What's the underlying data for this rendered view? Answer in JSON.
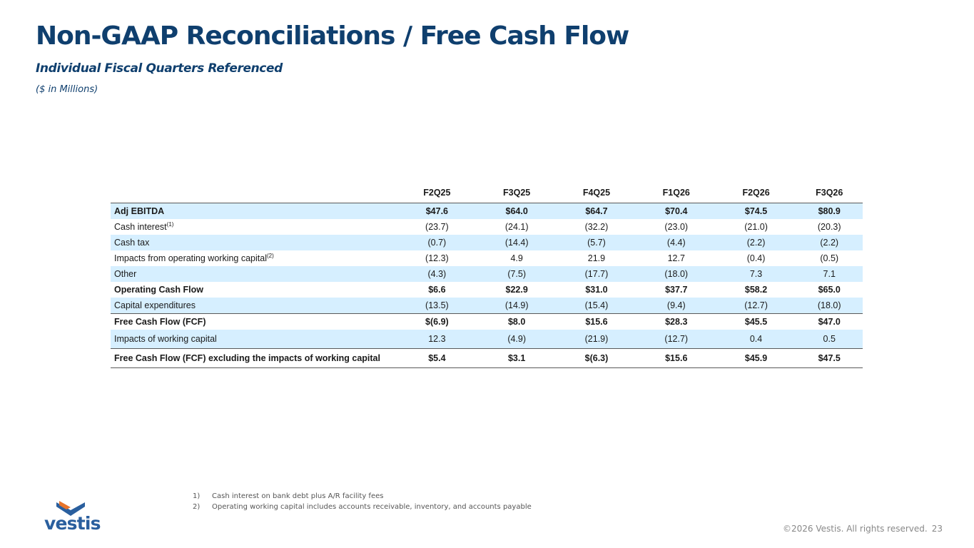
{
  "header": {
    "title": "Non-GAAP Reconciliations / Free Cash Flow",
    "subtitle": "Individual Fiscal Quarters Referenced",
    "units": "($ in Millions)"
  },
  "table": {
    "columns": [
      "F2Q25",
      "F3Q25",
      "F4Q25",
      "F1Q26",
      "F2Q26",
      "F3Q26"
    ],
    "rows": [
      {
        "label": "Adj EBITDA",
        "sup": "",
        "values": [
          "$47.6",
          "$64.0",
          "$64.7",
          "$70.4",
          "$74.5",
          "$80.9"
        ]
      },
      {
        "label": "Cash interest",
        "sup": "(1)",
        "values": [
          "(23.7)",
          "(24.1)",
          "(32.2)",
          "(23.0)",
          "(21.0)",
          "(20.3)"
        ]
      },
      {
        "label": "Cash tax",
        "sup": "",
        "values": [
          "(0.7)",
          "(14.4)",
          "(5.7)",
          "(4.4)",
          "(2.2)",
          "(2.2)"
        ]
      },
      {
        "label": "Impacts from operating working capital",
        "sup": "(2)",
        "values": [
          "(12.3)",
          "4.9",
          "21.9",
          "12.7",
          "(0.4)",
          "(0.5)"
        ]
      },
      {
        "label": "Other",
        "sup": "",
        "values": [
          "(4.3)",
          "(7.5)",
          "(17.7)",
          "(18.0)",
          "7.3",
          "7.1"
        ]
      },
      {
        "label": "Operating Cash Flow",
        "sup": "",
        "values": [
          "$6.6",
          "$22.9",
          "$31.0",
          "$37.7",
          "$58.2",
          "$65.0"
        ]
      },
      {
        "label": "Capital expenditures",
        "sup": "",
        "values": [
          "(13.5)",
          "(14.9)",
          "(15.4)",
          "(9.4)",
          "(12.7)",
          "(18.0)"
        ]
      },
      {
        "label": "Free Cash Flow (FCF)",
        "sup": "",
        "values": [
          "$(6.9)",
          "$8.0",
          "$15.6",
          "$28.3",
          "$45.5",
          "$47.0"
        ]
      },
      {
        "label": "Impacts of working capital",
        "sup": "",
        "values": [
          "12.3",
          "(4.9)",
          "(21.9)",
          "(12.7)",
          "0.4",
          "0.5"
        ]
      },
      {
        "label": "Free Cash Flow (FCF) excluding the impacts of working capital",
        "sup": "",
        "values": [
          "$5.4",
          "$3.1",
          "$(6.3)",
          "$15.6",
          "$45.9",
          "$47.5"
        ]
      }
    ]
  },
  "footnotes": [
    {
      "num": "1)",
      "text": "Cash interest on bank debt plus A/R facility fees"
    },
    {
      "num": "2)",
      "text": "Operating working capital includes accounts receivable, inventory, and accounts payable"
    }
  ],
  "footer": {
    "logo_text": "vestis",
    "copyright": "©2026 Vestis. All rights reserved.",
    "page_number": "23"
  },
  "colors": {
    "title": "#0f3f6e",
    "row_shade": "#d6efff",
    "logo_orange": "#e8742a",
    "logo_blue": "#2a5f9e"
  }
}
